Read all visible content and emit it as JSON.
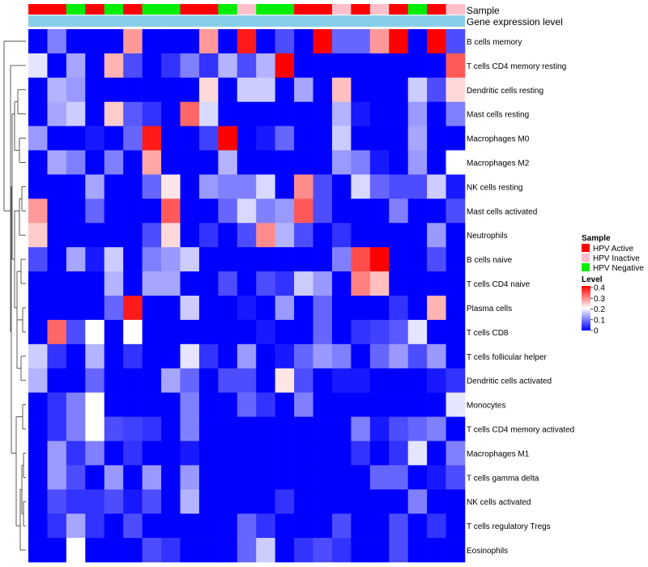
{
  "chart_data": {
    "type": "heatmap",
    "title": "",
    "annotation_labels": {
      "sample": "Sample",
      "gene_level": "Gene expression level"
    },
    "sample_groups": [
      "A",
      "A",
      "N",
      "A",
      "N",
      "A",
      "N",
      "N",
      "A",
      "A",
      "N",
      "I",
      "N",
      "N",
      "A",
      "A",
      "I",
      "A",
      "I",
      "A",
      "N",
      "A",
      "I"
    ],
    "sample_legend": {
      "title": "Sample",
      "entries": [
        {
          "key": "A",
          "label": "HPV Active",
          "color": "#ff0000"
        },
        {
          "key": "I",
          "label": "HPV Inactive",
          "color": "#ffc0cb"
        },
        {
          "key": "N",
          "label": "HPV Negative",
          "color": "#00ee00"
        }
      ]
    },
    "level_legend": {
      "title": "Level",
      "ticks": [
        "0.4",
        "0.3",
        "0.2",
        "0.1",
        "0"
      ],
      "range": [
        0,
        0.4
      ]
    },
    "colors": {
      "low": "#0000ff",
      "mid": "#ffffff",
      "high": "#ff0000",
      "gene_bar": "#87ceeb"
    },
    "rows": [
      "B cells memory",
      "T cells CD4 memory resting",
      "Dendritic cells resting",
      "Mast cells resting",
      "Macrophages M0",
      "Macrophages M2",
      "NK cells resting",
      "Mast cells activated",
      "Neutrophils",
      "B cells naive",
      "T cells CD4 naive",
      "Plasma cells",
      "T cells CD8",
      "T cells follicular helper",
      "Dendritic cells activated",
      "Monocytes",
      "T cells CD4 memory activated",
      "Macrophages M1",
      "T cells gamma delta",
      "NK cells activated",
      "T cells regulatory  Tregs",
      "Eosinophils"
    ],
    "values": [
      [
        0.0,
        0.1,
        0.0,
        0.0,
        0.0,
        0.28,
        0.0,
        0.0,
        0.0,
        0.28,
        0.0,
        0.38,
        0.0,
        0.06,
        0.0,
        0.4,
        0.08,
        0.08,
        0.28,
        0.4,
        0.0,
        0.4,
        0.06
      ],
      [
        0.18,
        0.0,
        0.13,
        0.0,
        0.26,
        0.06,
        0.0,
        0.04,
        0.1,
        0.04,
        0.14,
        0.06,
        0.14,
        0.4,
        0.0,
        0.0,
        0.0,
        0.0,
        0.0,
        0.0,
        0.0,
        0.0,
        0.33
      ],
      [
        0.0,
        0.14,
        0.12,
        0.0,
        0.0,
        0.0,
        0.0,
        0.0,
        0.0,
        0.23,
        0.0,
        0.16,
        0.16,
        0.0,
        0.13,
        0.0,
        0.25,
        0.0,
        0.0,
        0.0,
        0.16,
        0.06,
        0.23
      ],
      [
        0.0,
        0.13,
        0.16,
        0.0,
        0.24,
        0.07,
        0.04,
        0.0,
        0.32,
        0.17,
        0.0,
        0.0,
        0.0,
        0.0,
        0.0,
        0.0,
        0.14,
        0.02,
        0.0,
        0.0,
        0.12,
        0.0,
        0.1
      ],
      [
        0.12,
        0.0,
        0.0,
        0.02,
        0.0,
        0.08,
        0.38,
        0.0,
        0.0,
        0.05,
        0.4,
        0.0,
        0.02,
        0.08,
        0.0,
        0.0,
        0.16,
        0.0,
        0.0,
        0.0,
        0.13,
        0.0,
        0.0
      ],
      [
        0.0,
        0.13,
        0.1,
        0.0,
        0.1,
        0.0,
        0.27,
        0.0,
        0.0,
        0.0,
        0.14,
        0.0,
        0.0,
        0.0,
        0.0,
        0.0,
        0.12,
        0.1,
        0.02,
        0.0,
        0.12,
        0.0,
        0.2
      ],
      [
        0.0,
        0.0,
        0.0,
        0.13,
        0.0,
        0.0,
        0.08,
        0.22,
        0.0,
        0.12,
        0.1,
        0.1,
        0.17,
        0.0,
        0.29,
        0.06,
        0.0,
        0.17,
        0.08,
        0.06,
        0.06,
        0.16,
        0.02
      ],
      [
        0.28,
        0.0,
        0.0,
        0.08,
        0.0,
        0.0,
        0.0,
        0.33,
        0.0,
        0.0,
        0.08,
        0.17,
        0.1,
        0.12,
        0.33,
        0.06,
        0.0,
        0.0,
        0.0,
        0.1,
        0.0,
        0.0,
        0.06
      ],
      [
        0.24,
        0.0,
        0.0,
        0.0,
        0.0,
        0.0,
        0.06,
        0.23,
        0.0,
        0.04,
        0.0,
        0.06,
        0.29,
        0.14,
        0.06,
        0.0,
        0.04,
        0.0,
        0.0,
        0.0,
        0.0,
        0.12,
        0.0
      ],
      [
        0.06,
        0.0,
        0.13,
        0.02,
        0.16,
        0.0,
        0.1,
        0.12,
        0.16,
        0.0,
        0.0,
        0.0,
        0.0,
        0.0,
        0.0,
        0.0,
        0.1,
        0.34,
        0.4,
        0.0,
        0.0,
        0.06,
        0.0
      ],
      [
        0.0,
        0.0,
        0.0,
        0.0,
        0.14,
        0.0,
        0.13,
        0.13,
        0.0,
        0.0,
        0.06,
        0.0,
        0.06,
        0.04,
        0.16,
        0.12,
        0.0,
        0.3,
        0.25,
        0.0,
        0.0,
        0.0,
        0.0
      ],
      [
        0.0,
        0.0,
        0.0,
        0.0,
        0.08,
        0.38,
        0.0,
        0.0,
        0.16,
        0.0,
        0.0,
        0.02,
        0.0,
        0.12,
        0.0,
        0.08,
        0.0,
        0.0,
        0.0,
        0.04,
        0.0,
        0.26,
        0.0
      ],
      [
        0.0,
        0.32,
        0.06,
        0.2,
        0.0,
        0.2,
        0.0,
        0.0,
        0.0,
        0.0,
        0.0,
        0.0,
        0.02,
        0.0,
        0.0,
        0.08,
        0.0,
        0.04,
        0.05,
        0.07,
        0.18,
        0.0,
        0.0
      ],
      [
        0.16,
        0.04,
        0.0,
        0.14,
        0.0,
        0.04,
        0.0,
        0.0,
        0.18,
        0.04,
        0.0,
        0.12,
        0.0,
        0.02,
        0.08,
        0.12,
        0.1,
        0.0,
        0.08,
        0.12,
        0.06,
        0.12,
        0.0
      ],
      [
        0.14,
        0.0,
        0.0,
        0.08,
        0.0,
        0.0,
        0.0,
        0.13,
        0.08,
        0.0,
        0.06,
        0.06,
        0.0,
        0.22,
        0.06,
        0.0,
        0.02,
        0.02,
        0.0,
        0.0,
        0.0,
        0.02,
        0.04
      ],
      [
        0.0,
        0.04,
        0.1,
        0.2,
        0.0,
        0.0,
        0.0,
        0.0,
        0.1,
        0.0,
        0.0,
        0.08,
        0.04,
        0.0,
        0.1,
        0.0,
        0.0,
        0.0,
        0.0,
        0.0,
        0.0,
        0.0,
        0.18
      ],
      [
        0.0,
        0.04,
        0.1,
        0.2,
        0.06,
        0.05,
        0.04,
        0.0,
        0.1,
        0.0,
        0.0,
        0.0,
        0.0,
        0.0,
        0.0,
        0.0,
        0.0,
        0.1,
        0.02,
        0.06,
        0.08,
        0.1,
        0.0
      ],
      [
        0.0,
        0.12,
        0.04,
        0.1,
        0.0,
        0.04,
        0.0,
        0.0,
        0.02,
        0.0,
        0.0,
        0.0,
        0.0,
        0.0,
        0.0,
        0.0,
        0.0,
        0.04,
        0.0,
        0.04,
        0.18,
        0.0,
        0.1
      ],
      [
        0.0,
        0.12,
        0.06,
        0.0,
        0.12,
        0.0,
        0.12,
        0.0,
        0.12,
        0.0,
        0.0,
        0.0,
        0.0,
        0.0,
        0.0,
        0.0,
        0.0,
        0.0,
        0.08,
        0.08,
        0.0,
        0.02,
        0.06
      ],
      [
        0.0,
        0.06,
        0.04,
        0.04,
        0.06,
        0.02,
        0.06,
        0.0,
        0.14,
        0.0,
        0.0,
        0.0,
        0.0,
        0.04,
        0.0,
        0.0,
        0.0,
        0.0,
        0.0,
        0.0,
        0.1,
        0.0,
        0.0
      ],
      [
        0.0,
        0.04,
        0.13,
        0.04,
        0.0,
        0.06,
        0.0,
        0.0,
        0.0,
        0.0,
        0.0,
        0.08,
        0.04,
        0.0,
        0.0,
        0.0,
        0.06,
        0.0,
        0.0,
        0.06,
        0.0,
        0.04,
        0.0
      ],
      [
        0.0,
        0.0,
        0.2,
        0.0,
        0.0,
        0.0,
        0.06,
        0.04,
        0.0,
        0.0,
        0.0,
        0.08,
        0.16,
        0.0,
        0.04,
        0.06,
        0.04,
        0.0,
        0.0,
        0.06,
        0.0,
        0.0,
        0.0
      ]
    ]
  }
}
